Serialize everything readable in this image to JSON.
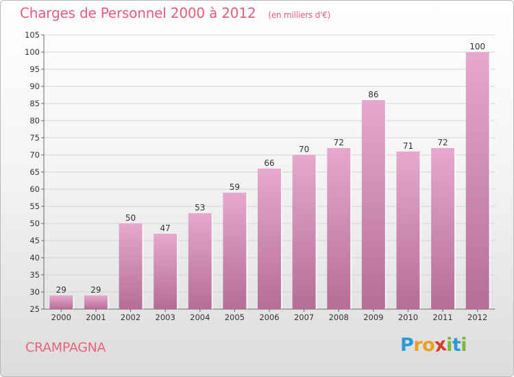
{
  "title": "Charges de Personnel 2000 à 2012",
  "subtitle": "(en milliers d'€)",
  "commune": "CRAMPAGNA",
  "logo": {
    "letters": [
      "P",
      "r",
      "o",
      "x",
      "i",
      "t",
      "i"
    ],
    "colors": [
      "#2a9bd8",
      "#e8a020",
      "#e8a020",
      "#d93a2a",
      "#7ab73a",
      "#2a9bd8",
      "#7ab73a"
    ]
  },
  "colors": {
    "title": "#e85a7a",
    "bar_top": "#e6a8cc",
    "bar_bottom": "#b56e96"
  },
  "chart_data": {
    "type": "bar",
    "categories": [
      "2000",
      "2001",
      "2002",
      "2003",
      "2004",
      "2005",
      "2006",
      "2007",
      "2008",
      "2009",
      "2010",
      "2011",
      "2012"
    ],
    "values": [
      29,
      29,
      50,
      47,
      53,
      59,
      66,
      70,
      72,
      86,
      71,
      72,
      100
    ],
    "ylim": [
      25,
      105
    ],
    "yticks": [
      25,
      30,
      35,
      40,
      45,
      50,
      55,
      60,
      65,
      70,
      75,
      80,
      85,
      90,
      95,
      100,
      105
    ],
    "grid": true,
    "data_labels": true
  }
}
